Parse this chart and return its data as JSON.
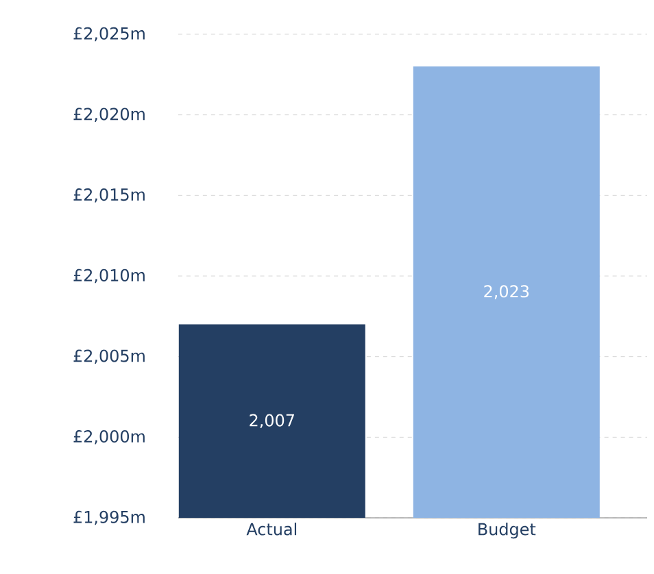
{
  "chart_data": {
    "type": "bar",
    "categories": [
      "Actual",
      "Budget"
    ],
    "values": [
      2007,
      2023
    ],
    "colors": [
      "#243f63",
      "#8eb4e3"
    ],
    "value_labels": [
      "2,007",
      "2,023"
    ],
    "ylim": [
      1995,
      2025
    ],
    "yticks": [
      {
        "value": 1995,
        "label": "£1,995m"
      },
      {
        "value": 2000,
        "label": "£2,000m"
      },
      {
        "value": 2005,
        "label": "£2,005m"
      },
      {
        "value": 2010,
        "label": "£2,010m"
      },
      {
        "value": 2015,
        "label": "£2,015m"
      },
      {
        "value": 2020,
        "label": "£2,020m"
      },
      {
        "value": 2025,
        "label": "£2,025m"
      }
    ],
    "grid": "y"
  }
}
